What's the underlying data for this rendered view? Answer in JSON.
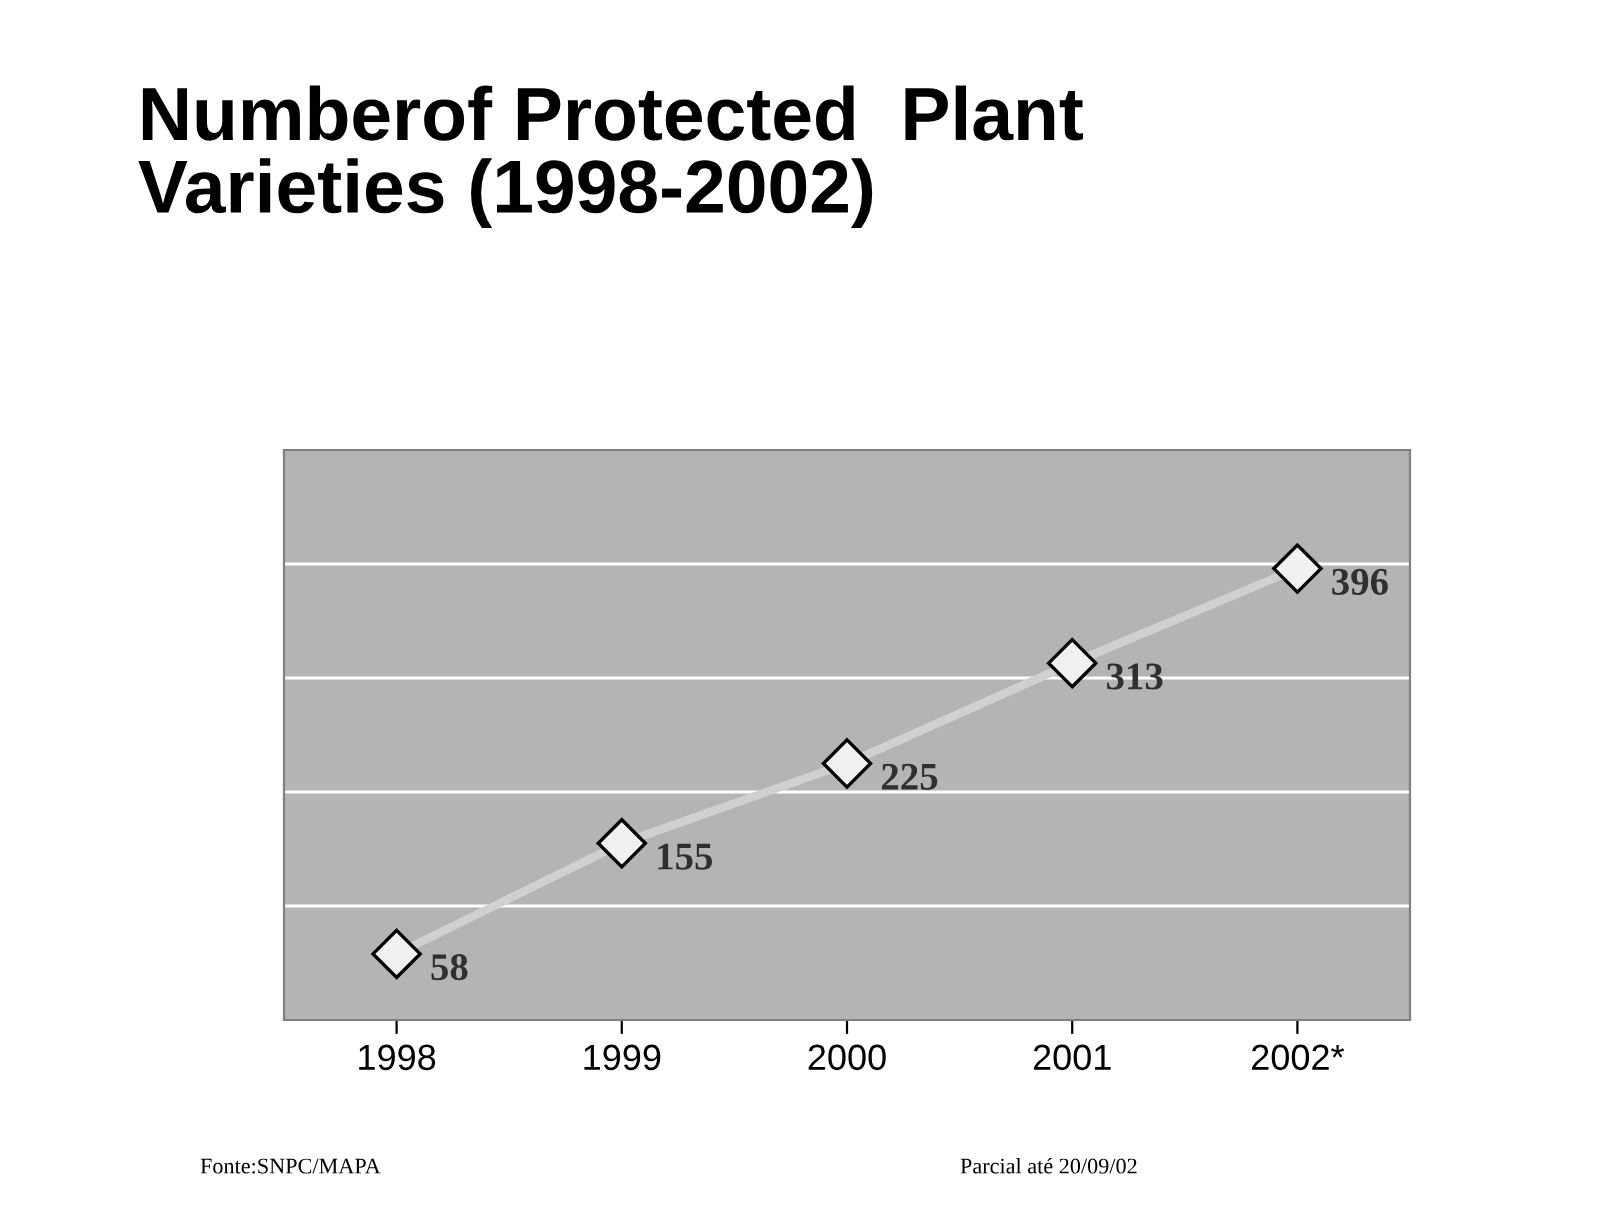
{
  "chart_data": {
    "type": "line",
    "title": "Numberof Protected  Plant\nVarieties (1998-2002)",
    "categories": [
      "1998",
      "1999",
      "2000",
      "2001",
      "2002*"
    ],
    "series": [
      {
        "color": "#d0d0d0",
        "values": [
          58,
          155,
          225,
          313,
          396
        ]
      }
    ],
    "ylim": [
      0,
      500
    ],
    "yticks": [
      {
        "value": 100,
        "label": null
      },
      {
        "value": 200,
        "label": null
      },
      {
        "value": 300,
        "label": null
      },
      {
        "value": 400,
        "label": null
      }
    ],
    "tick_labels": "x",
    "grid": "y",
    "marker": "diamond",
    "line_style": "solid",
    "data_labels": true,
    "legend": false,
    "annotations": [
      "Fonte:SNPC/MAPA",
      "Parcial até 20/09/02"
    ]
  }
}
